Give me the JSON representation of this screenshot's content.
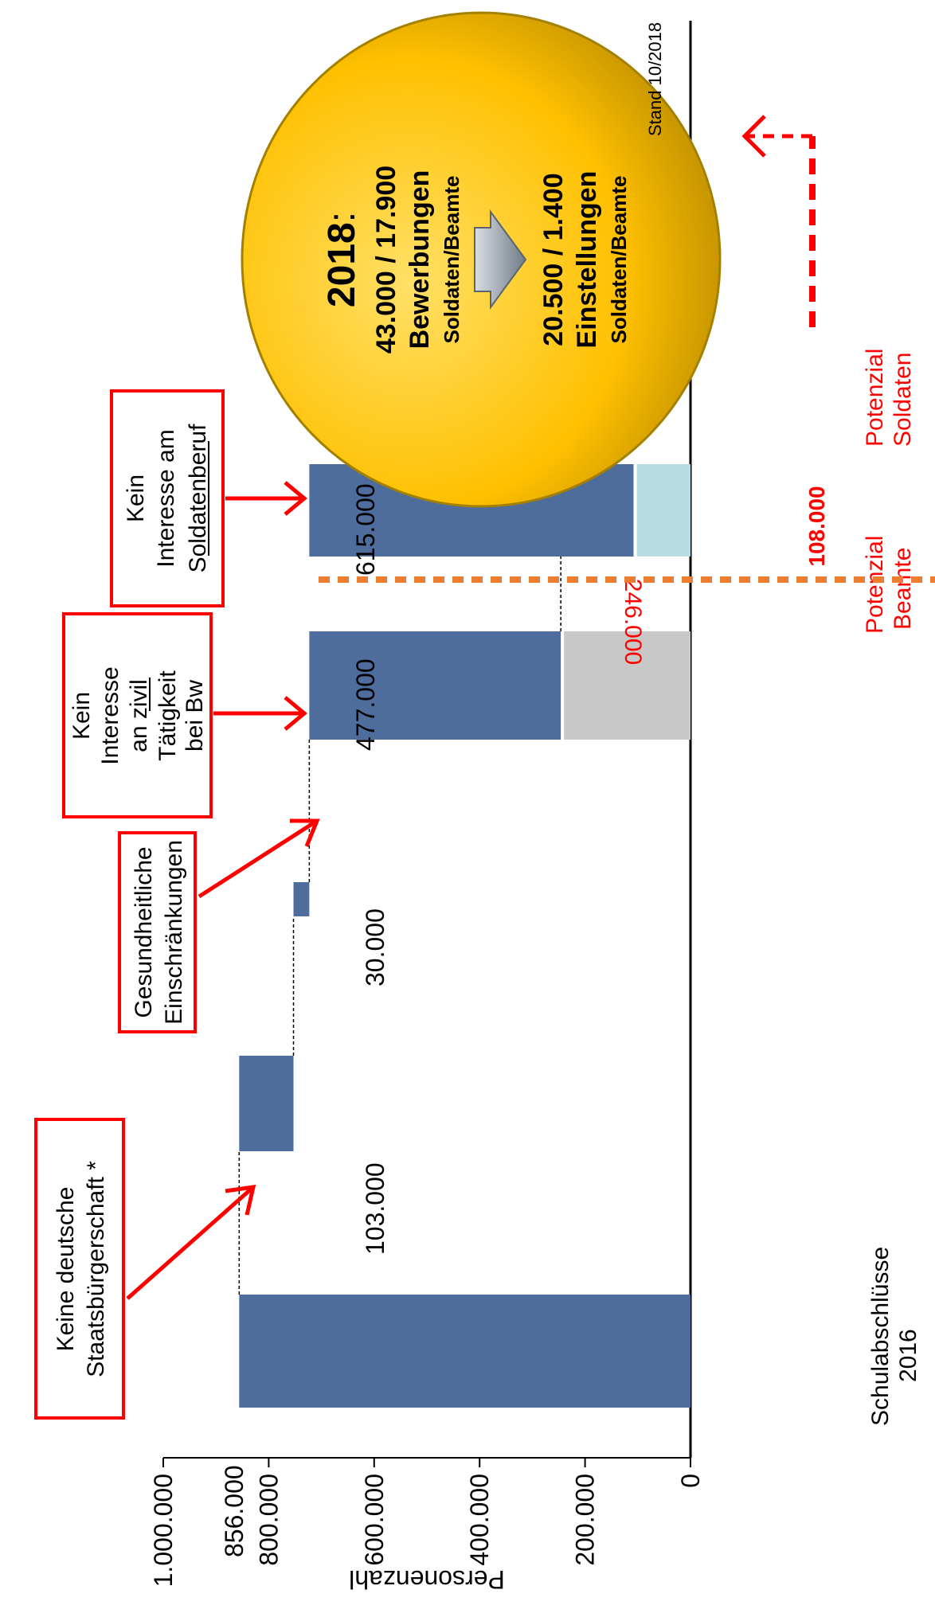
{
  "chart_data": {
    "type": "bar",
    "subtype": "waterfall",
    "ylabel": "Personenzahl",
    "ylim": [
      0,
      1000000
    ],
    "yticks": [
      "0",
      "200.000",
      "400.000",
      "600.000",
      "800.000",
      "1.000.000"
    ],
    "ytick_values": [
      0,
      200000,
      400000,
      600000,
      800000,
      1000000
    ],
    "categories": [
      "Schulabschlüsse 2016",
      "",
      "",
      "",
      ""
    ],
    "x_label_lines": [
      "Schulabschlüsse",
      "2016"
    ],
    "bars": [
      {
        "label": "856.000",
        "start": 0,
        "end": 856000
      },
      {
        "label": "103.000",
        "start": 753000,
        "end": 856000
      },
      {
        "label": "30.000",
        "start": 723000,
        "end": 753000
      },
      {
        "label": "477.000",
        "start": 246000,
        "end": 723000
      },
      {
        "label": "615.000",
        "start": 108000,
        "end": 723000
      }
    ],
    "potential": [
      {
        "value": 246000,
        "label": "246.000",
        "color": "#c8c8c8",
        "caption_lines": [
          "Potenzial",
          "Beamte"
        ]
      },
      {
        "value": 108000,
        "label": "108.000",
        "color": "#b7dde3",
        "caption_lines": [
          "Potenzial",
          "Soldaten"
        ]
      }
    ],
    "annotations": [
      {
        "lines": [
          "Keine deutsche",
          "Staatsbürgerschaft *"
        ]
      },
      {
        "lines": [
          "Gesundheitliche",
          "Einschränkungen"
        ]
      },
      {
        "lines": [
          "Kein",
          "Interesse",
          "an zivil",
          "Tätigkeit",
          "bei Bw"
        ]
      },
      {
        "lines": [
          "Kein",
          "Interesse am",
          "Soldatenberuf"
        ]
      }
    ],
    "bubble": {
      "year": "2018",
      "colon": ":",
      "line1": "43.000 / 17.900",
      "line2": "Bewerbungen",
      "line3": "Soldaten/Beamte",
      "line4": "20.500 / 1.400",
      "line5": "Einstellungen",
      "line6": "Soldaten/Beamte"
    },
    "footnote": "Stand 10/2018"
  },
  "colors": {
    "bar": "#4f6d9c",
    "annotation_border": "#ff0000",
    "arrow": "#ff0000",
    "divider": "#ed7d31",
    "bubble": "#ffc000",
    "bubble_edge": "#a38000",
    "potential_text": "#ff0000"
  },
  "icons": [
    "right-arrow-icon",
    "dashed-return-arrow-icon"
  ]
}
